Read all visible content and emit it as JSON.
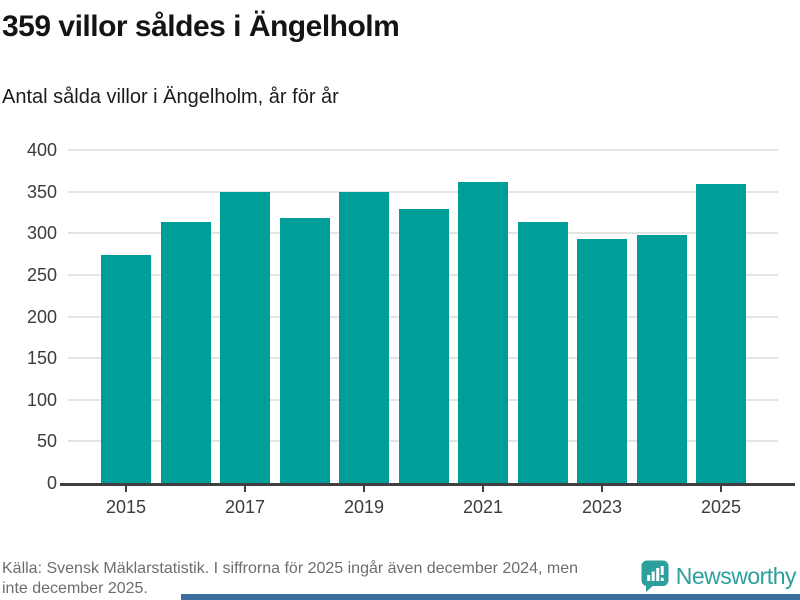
{
  "title": "359 villor såldes i Ängelholm",
  "subtitle": "Antal sålda villor i Ängelholm, år för år",
  "chart_data": {
    "type": "bar",
    "title": "359 villor såldes i Ängelholm",
    "subtitle": "Antal sålda villor i Ängelholm, år för år",
    "categories": [
      2015,
      2016,
      2017,
      2018,
      2019,
      2020,
      2021,
      2022,
      2023,
      2024,
      2025
    ],
    "values": [
      274,
      314,
      349,
      318,
      350,
      329,
      361,
      314,
      293,
      298,
      359
    ],
    "x_tick_labels": [
      "2015",
      "2017",
      "2019",
      "2021",
      "2023",
      "2025"
    ],
    "y_ticks": [
      0,
      50,
      100,
      150,
      200,
      250,
      300,
      350,
      400
    ],
    "ylim": [
      0,
      400
    ],
    "grid": true,
    "legend": "none",
    "bar_color": "#009e98",
    "axis_color": "#3f3f3f",
    "gridline_color": "#e4e4e4"
  },
  "footer": {
    "source_line1": "Källa: Svensk Mäklarstatistik. I siffrorna för 2025 ingår även december 2024, men",
    "source_line2": "inte december 2025."
  },
  "brand": {
    "name": "Newsworthy",
    "color": "#2d9f9d"
  }
}
